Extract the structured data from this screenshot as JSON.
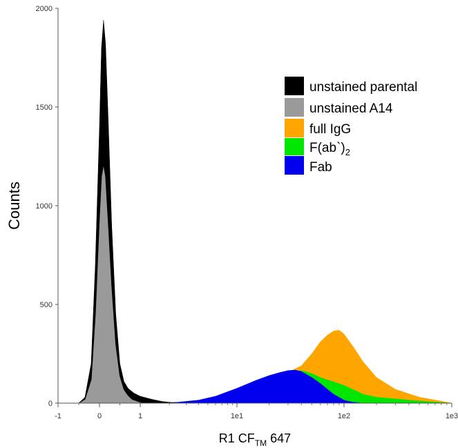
{
  "chart_data": {
    "type": "area",
    "title": "",
    "xlabel": {
      "main": "R1 CF",
      "subscript": "TM",
      "suffix": " 647"
    },
    "ylabel": "Counts",
    "x_scale": "biexponential",
    "x_tick_labels": [
      "-1",
      "0",
      "1",
      "1e1",
      "1e2",
      "1e3"
    ],
    "x_tick_values": [
      -1,
      0,
      1,
      10,
      100,
      1000
    ],
    "y_tick_labels": [
      "0",
      "500",
      "1000",
      "1500",
      "2000"
    ],
    "y_tick_values": [
      0,
      500,
      1000,
      1500,
      2000
    ],
    "ylim": [
      0,
      2000
    ],
    "xlim": [
      -1,
      1000
    ],
    "grid": false,
    "legend_position": "top-right",
    "series": [
      {
        "name": "unstained parental",
        "color": "#000000",
        "points": [
          [
            -0.5,
            0
          ],
          [
            -0.35,
            30
          ],
          [
            -0.2,
            200
          ],
          [
            -0.1,
            700
          ],
          [
            0,
            1400
          ],
          [
            0.05,
            1800
          ],
          [
            0.1,
            1940
          ],
          [
            0.15,
            1820
          ],
          [
            0.22,
            1400
          ],
          [
            0.3,
            900
          ],
          [
            0.4,
            450
          ],
          [
            0.5,
            200
          ],
          [
            0.6,
            110
          ],
          [
            0.7,
            75
          ],
          [
            0.85,
            50
          ],
          [
            1.0,
            35
          ],
          [
            1.3,
            20
          ],
          [
            1.7,
            8
          ],
          [
            2.5,
            0
          ]
        ]
      },
      {
        "name": "unstained A14",
        "color": "#9a9a9a",
        "points": [
          [
            -0.5,
            0
          ],
          [
            -0.35,
            20
          ],
          [
            -0.2,
            120
          ],
          [
            -0.1,
            450
          ],
          [
            0,
            950
          ],
          [
            0.05,
            1150
          ],
          [
            0.1,
            1210
          ],
          [
            0.15,
            1150
          ],
          [
            0.22,
            900
          ],
          [
            0.3,
            600
          ],
          [
            0.4,
            300
          ],
          [
            0.5,
            140
          ],
          [
            0.6,
            70
          ],
          [
            0.7,
            40
          ],
          [
            0.8,
            20
          ],
          [
            1.0,
            5
          ],
          [
            1.2,
            0
          ]
        ]
      },
      {
        "name": "full IgG",
        "color": "#ffa500",
        "points": [
          [
            2,
            0
          ],
          [
            5,
            20
          ],
          [
            10,
            60
          ],
          [
            20,
            120
          ],
          [
            30,
            155
          ],
          [
            40,
            190
          ],
          [
            50,
            250
          ],
          [
            60,
            310
          ],
          [
            70,
            345
          ],
          [
            80,
            365
          ],
          [
            90,
            370
          ],
          [
            100,
            350
          ],
          [
            120,
            290
          ],
          [
            150,
            210
          ],
          [
            200,
            130
          ],
          [
            300,
            70
          ],
          [
            500,
            30
          ],
          [
            800,
            10
          ],
          [
            1000,
            0
          ]
        ]
      },
      {
        "name": "F(ab`)2",
        "color": "#00e600",
        "points": [
          [
            2,
            0
          ],
          [
            5,
            20
          ],
          [
            10,
            60
          ],
          [
            20,
            120
          ],
          [
            30,
            155
          ],
          [
            40,
            165
          ],
          [
            50,
            150
          ],
          [
            60,
            130
          ],
          [
            70,
            118
          ],
          [
            80,
            108
          ],
          [
            100,
            90
          ],
          [
            120,
            70
          ],
          [
            150,
            45
          ],
          [
            200,
            30
          ],
          [
            300,
            22
          ],
          [
            400,
            15
          ],
          [
            600,
            8
          ],
          [
            800,
            3
          ],
          [
            1000,
            0
          ]
        ]
      },
      {
        "name": "Fab",
        "color": "#0000ee",
        "points": [
          [
            1.5,
            0
          ],
          [
            2.5,
            5
          ],
          [
            4,
            15
          ],
          [
            6,
            35
          ],
          [
            10,
            75
          ],
          [
            15,
            115
          ],
          [
            20,
            140
          ],
          [
            25,
            155
          ],
          [
            30,
            165
          ],
          [
            35,
            168
          ],
          [
            40,
            160
          ],
          [
            50,
            130
          ],
          [
            60,
            100
          ],
          [
            70,
            70
          ],
          [
            80,
            45
          ],
          [
            100,
            15
          ],
          [
            120,
            5
          ],
          [
            150,
            0
          ]
        ]
      }
    ],
    "legend": [
      {
        "label": "unstained parental",
        "color": "#000000"
      },
      {
        "label": "unstained A14",
        "color": "#9a9a9a"
      },
      {
        "label": "full IgG",
        "color": "#ffa500"
      },
      {
        "label": "F(ab`)",
        "subscript": "2",
        "color": "#00e600"
      },
      {
        "label": "Fab",
        "color": "#0000ee"
      }
    ]
  }
}
